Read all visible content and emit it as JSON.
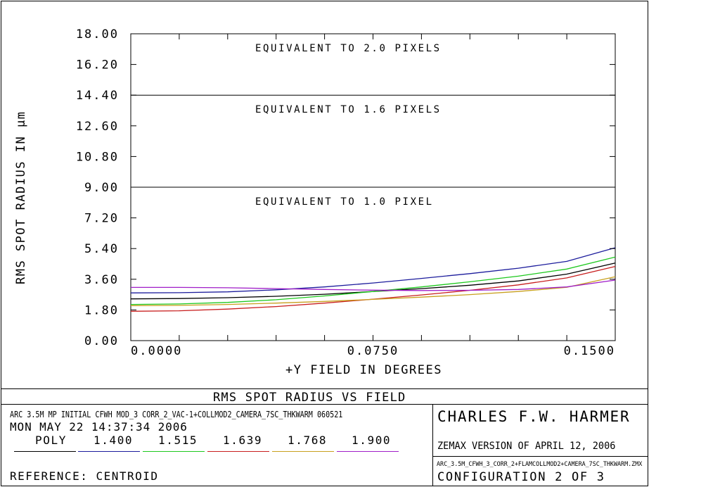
{
  "colors": {
    "poly": "#000000",
    "w1400": "#1c1c9c",
    "w1515": "#1ec81e",
    "w1639": "#c81e1e",
    "w1768": "#c8a01e",
    "w1900": "#a01ec8"
  },
  "chart_data": {
    "type": "line",
    "xlabel": "+Y FIELD IN DEGREES",
    "ylabel": "RMS SPOT RADIUS IN µm",
    "xlim": [
      0,
      0.15
    ],
    "ylim": [
      0,
      18
    ],
    "x_ticks": [
      "0.0000",
      "0.0750",
      "0.1500"
    ],
    "x_tick_values": [
      0,
      0.075,
      0.15
    ],
    "y_ticks": [
      "0.00",
      "1.80",
      "3.60",
      "5.40",
      "7.20",
      "9.00",
      "10.80",
      "12.60",
      "14.40",
      "16.20",
      "18.00"
    ],
    "y_tick_values": [
      0,
      1.8,
      3.6,
      5.4,
      7.2,
      9.0,
      10.8,
      12.6,
      14.4,
      16.2,
      18.0
    ],
    "reference_lines": [
      {
        "value": 18.0,
        "label": "EQUIVALENT TO 2.0 PIXELS"
      },
      {
        "value": 14.4,
        "label": "EQUIVALENT TO 1.6 PIXELS"
      },
      {
        "value": 9.0,
        "label": "EQUIVALENT TO 1.0 PIXEL"
      }
    ],
    "x": [
      0,
      0.015,
      0.03,
      0.045,
      0.06,
      0.075,
      0.09,
      0.105,
      0.12,
      0.135,
      0.15
    ],
    "series": [
      {
        "name": "POLY",
        "color": "#000000",
        "values": [
          2.45,
          2.47,
          2.52,
          2.6,
          2.72,
          2.88,
          3.05,
          3.25,
          3.5,
          3.9,
          4.55
        ]
      },
      {
        "name": "1.400",
        "color": "#1c1c9c",
        "values": [
          2.8,
          2.81,
          2.86,
          2.98,
          3.15,
          3.38,
          3.65,
          3.93,
          4.25,
          4.65,
          5.45
        ]
      },
      {
        "name": "1.515",
        "color": "#1ec81e",
        "values": [
          2.12,
          2.15,
          2.24,
          2.4,
          2.62,
          2.88,
          3.15,
          3.45,
          3.78,
          4.2,
          4.9
        ]
      },
      {
        "name": "1.639",
        "color": "#c81e1e",
        "values": [
          1.72,
          1.75,
          1.85,
          2.0,
          2.2,
          2.43,
          2.68,
          2.95,
          3.27,
          3.68,
          4.35
        ]
      },
      {
        "name": "1.768",
        "color": "#c8a01e",
        "values": [
          2.05,
          2.07,
          2.12,
          2.2,
          2.3,
          2.42,
          2.55,
          2.7,
          2.88,
          3.13,
          3.75
        ]
      },
      {
        "name": "1.900",
        "color": "#a01ec8",
        "values": [
          3.12,
          3.12,
          3.1,
          3.05,
          3.0,
          2.96,
          2.94,
          2.95,
          3.0,
          3.15,
          3.55
        ]
      }
    ]
  },
  "footer": {
    "title": "RMS SPOT RADIUS VS FIELD",
    "info_line1": "ARC 3.5M MP INITIAL  CFWH MOD_3  CORR_2_VAC-1+COLLMOD2_CAMERA_7SC_THKWARM 060521",
    "info_line2": "MON MAY 22 14:37:34 2006",
    "legend_labels": [
      "POLY",
      "1.400",
      "1.515",
      "1.639",
      "1.768",
      "1.900"
    ],
    "reference": "REFERENCE: CENTROID",
    "author": "CHARLES F.W. HARMER",
    "version": "ZEMAX VERSION OF APRIL 12, 2006",
    "file": "ARC_3.5M_CFWH_3_CORR_2+FLAMCOLLMOD2+CAMERA_7SC_THKWARM.ZMX",
    "config": "CONFIGURATION 2 OF 3"
  }
}
